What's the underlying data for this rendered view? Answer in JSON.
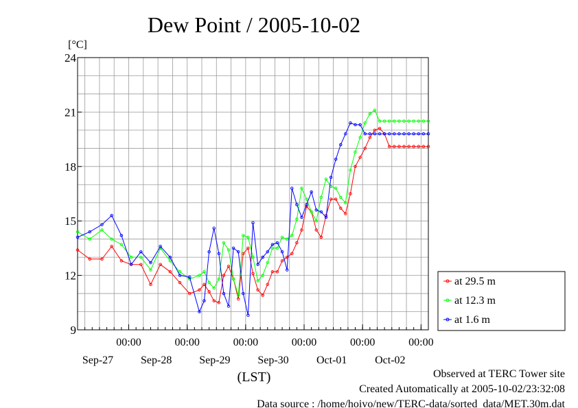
{
  "chart_data": {
    "type": "line",
    "title": "Dew Point / 2005-10-02",
    "ylabel": "[°C]",
    "xlabel": "(LST)",
    "ylim": [
      9,
      24
    ],
    "yticks": [
      "24",
      "21",
      "18",
      "15",
      "12",
      "9"
    ],
    "x_range_hours": [
      0,
      144
    ],
    "x_major_ticks": [
      {
        "hour": 21,
        "time": "00:00",
        "date": "Sep-27"
      },
      {
        "hour": 45,
        "time": "00:00",
        "date": "Sep-28"
      },
      {
        "hour": 69,
        "time": "00:00",
        "date": "Sep-29"
      },
      {
        "hour": 93,
        "time": "00:00",
        "date": "Sep-30"
      },
      {
        "hour": 117,
        "time": "00:00",
        "date": "Oct-01"
      },
      {
        "hour": 141,
        "time": "00:00",
        "date": "Oct-02"
      }
    ],
    "grid": true,
    "legend_position": "right",
    "series": [
      {
        "name": "at 29.5 m",
        "color": "#ff0000",
        "x": [
          0,
          5,
          10,
          14,
          18,
          22,
          26,
          30,
          34,
          38,
          42,
          46,
          50,
          52,
          54,
          56,
          58,
          60,
          62,
          64,
          66,
          68,
          70,
          72,
          74,
          76,
          78,
          80,
          82,
          84,
          86,
          88,
          90,
          92,
          94,
          96,
          98,
          100,
          102,
          104,
          106,
          108,
          110,
          112,
          114,
          116,
          118,
          120,
          122,
          124,
          126,
          128,
          130,
          132,
          134,
          136,
          138,
          140,
          142,
          144
        ],
        "y": [
          13.4,
          12.9,
          12.9,
          13.6,
          12.8,
          12.6,
          12.6,
          11.5,
          12.6,
          12.2,
          11.6,
          11.0,
          11.2,
          11.5,
          11.1,
          10.6,
          10.5,
          12.0,
          12.5,
          11.8,
          10.7,
          13.2,
          13.5,
          12.1,
          11.2,
          10.9,
          11.5,
          12.2,
          12.2,
          12.8,
          13.0,
          13.2,
          13.8,
          14.5,
          15.8,
          15.5,
          14.5,
          14.1,
          15.3,
          16.2,
          16.2,
          15.7,
          15.4,
          16.5,
          18.0,
          18.5,
          19.0,
          19.6,
          20.0,
          20.1,
          19.8,
          19.1,
          19.1,
          19.1,
          19.1,
          19.1,
          19.1,
          19.1,
          19.1,
          19.1
        ]
      },
      {
        "name": "at 12.3 m",
        "color": "#00ff00",
        "x": [
          0,
          5,
          10,
          14,
          18,
          22,
          26,
          30,
          34,
          38,
          42,
          46,
          50,
          52,
          54,
          56,
          58,
          60,
          62,
          64,
          66,
          68,
          70,
          72,
          74,
          76,
          78,
          80,
          82,
          84,
          86,
          88,
          90,
          92,
          94,
          96,
          98,
          100,
          102,
          104,
          106,
          108,
          110,
          112,
          114,
          116,
          118,
          120,
          122,
          124,
          126,
          128,
          130,
          132,
          134,
          136,
          138,
          140,
          142,
          144
        ],
        "y": [
          14.4,
          14.0,
          14.5,
          14.0,
          13.7,
          13.0,
          13.0,
          12.3,
          13.5,
          12.8,
          12.2,
          11.8,
          12.0,
          12.2,
          11.6,
          11.3,
          11.8,
          13.8,
          13.4,
          11.8,
          10.9,
          14.2,
          14.1,
          13.0,
          11.7,
          12.0,
          12.7,
          13.5,
          13.5,
          14.1,
          14.0,
          14.2,
          15.1,
          16.8,
          16.2,
          15.5,
          15.0,
          16.3,
          17.3,
          16.9,
          16.8,
          16.3,
          16.0,
          17.8,
          18.8,
          19.6,
          20.4,
          20.9,
          21.1,
          20.5,
          20.5,
          20.5,
          20.5,
          20.5,
          20.5,
          20.5,
          20.5,
          20.5,
          20.5,
          20.5
        ]
      },
      {
        "name": "at 1.6 m",
        "color": "#0000ff",
        "x": [
          0,
          5,
          10,
          14,
          18,
          22,
          26,
          30,
          34,
          38,
          42,
          46,
          50,
          52,
          54,
          56,
          58,
          60,
          62,
          64,
          66,
          68,
          70,
          72,
          74,
          76,
          78,
          80,
          82,
          84,
          86,
          88,
          90,
          92,
          94,
          96,
          98,
          100,
          102,
          104,
          106,
          108,
          110,
          112,
          114,
          116,
          118,
          120,
          122,
          124,
          126,
          128,
          130,
          132,
          134,
          136,
          138,
          140,
          142,
          144
        ],
        "y": [
          14.1,
          14.4,
          14.8,
          15.3,
          14.2,
          12.6,
          13.3,
          12.7,
          13.6,
          13.0,
          12.0,
          11.9,
          10.0,
          10.6,
          13.3,
          14.6,
          13.2,
          11.0,
          10.3,
          13.5,
          13.3,
          11.0,
          9.8,
          14.9,
          12.6,
          13.0,
          13.3,
          13.7,
          13.8,
          13.3,
          12.3,
          16.8,
          15.9,
          15.2,
          15.9,
          16.6,
          15.6,
          15.5,
          15.2,
          17.4,
          18.4,
          19.2,
          19.8,
          20.4,
          20.3,
          20.3,
          19.8,
          19.8,
          19.8,
          19.8,
          19.8,
          19.8,
          19.8,
          19.8,
          19.8,
          19.8,
          19.8,
          19.8,
          19.8,
          19.8
        ]
      }
    ]
  },
  "footer": {
    "line1": "Observed at TERC Tower site",
    "line2": "Created Automatically at 2005-10-02/23:32:08",
    "line3": "Data source : /home/hoivo/new/TERC-data/sorted_data/MET.30m.dat"
  }
}
